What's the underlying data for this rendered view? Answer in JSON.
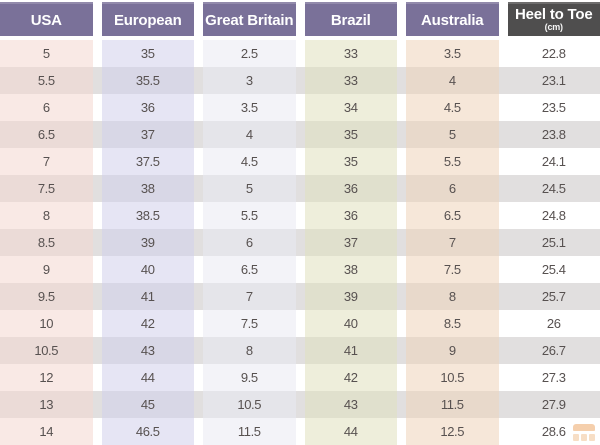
{
  "chart_data": {
    "type": "table",
    "columns": [
      {
        "key": "usa",
        "label": "USA"
      },
      {
        "key": "european",
        "label": "European"
      },
      {
        "key": "great_britain",
        "label": "Great Britain"
      },
      {
        "key": "brazil",
        "label": "Brazil"
      },
      {
        "key": "australia",
        "label": "Australia"
      },
      {
        "key": "heel_to_toe",
        "label": "Heel to Toe",
        "sublabel": "(cm)"
      }
    ],
    "rows": [
      [
        "5",
        "35",
        "2.5",
        "33",
        "3.5",
        "22.8"
      ],
      [
        "5.5",
        "35.5",
        "3",
        "33",
        "4",
        "23.1"
      ],
      [
        "6",
        "36",
        "3.5",
        "34",
        "4.5",
        "23.5"
      ],
      [
        "6.5",
        "37",
        "4",
        "35",
        "5",
        "23.8"
      ],
      [
        "7",
        "37.5",
        "4.5",
        "35",
        "5.5",
        "24.1"
      ],
      [
        "7.5",
        "38",
        "5",
        "36",
        "6",
        "24.5"
      ],
      [
        "8",
        "38.5",
        "5.5",
        "36",
        "6.5",
        "24.8"
      ],
      [
        "8.5",
        "39",
        "6",
        "37",
        "7",
        "25.1"
      ],
      [
        "9",
        "40",
        "6.5",
        "38",
        "7.5",
        "25.4"
      ],
      [
        "9.5",
        "41",
        "7",
        "39",
        "8",
        "25.7"
      ],
      [
        "10",
        "42",
        "7.5",
        "40",
        "8.5",
        "26"
      ],
      [
        "10.5",
        "43",
        "8",
        "41",
        "9",
        "26.7"
      ],
      [
        "12",
        "44",
        "9.5",
        "42",
        "10.5",
        "27.3"
      ],
      [
        "13",
        "45",
        "10.5",
        "43",
        "11.5",
        "27.9"
      ],
      [
        "14",
        "46.5",
        "11.5",
        "44",
        "12.5",
        "28.6"
      ]
    ],
    "layout_hints": {
      "grid": false,
      "striped_rows": true,
      "header_position": "top"
    }
  },
  "colors": {
    "header_purple": "#7a7199",
    "header_dark": "#4f4e4e",
    "row_stripe": "#e1dfdf",
    "tint_usa": "rgba(244,215,208,0.55)",
    "tint_european": "rgba(210,208,235,0.55)",
    "tint_great_britain": "rgba(233,233,242,0.55)",
    "tint_brazil": "rgba(224,224,190,0.55)",
    "tint_australia": "rgba(239,211,186,0.55)",
    "text": "#575150",
    "watermark_orange": "#eda86a",
    "watermark_orange_light": "#f2c497"
  }
}
